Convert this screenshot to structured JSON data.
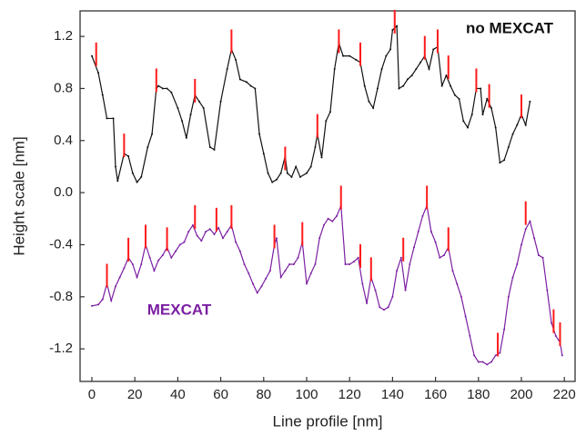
{
  "chart_data": {
    "type": "line",
    "xlabel": "Line profile [nm]",
    "ylabel": "Height scale [nm]",
    "xlim": [
      -5.5,
      225
    ],
    "ylim": [
      -1.45,
      1.396
    ],
    "xticks": [
      0,
      20,
      40,
      60,
      80,
      100,
      120,
      140,
      160,
      180,
      200,
      220
    ],
    "yticks": [
      -1.2,
      -0.8,
      -0.4,
      {
        "value": 0,
        "label": "0.0"
      },
      0.4,
      0.8,
      1.2
    ],
    "grid": false,
    "series": [
      {
        "name": "no MEXCAT",
        "color": "#111111",
        "x": [
          0,
          3,
          5,
          7,
          10,
          11,
          12,
          15,
          17,
          19,
          21,
          23,
          26,
          28,
          30,
          31,
          33,
          35,
          37,
          40,
          42,
          44,
          46,
          48,
          50,
          52,
          55,
          57,
          60,
          63,
          65,
          67,
          69,
          72,
          74,
          76,
          78,
          80,
          82,
          84,
          86,
          88,
          90,
          91,
          93,
          95,
          97,
          100,
          102,
          104,
          105,
          107,
          109,
          111,
          113,
          115,
          117,
          120,
          123,
          125,
          127,
          129,
          131,
          133,
          135,
          137,
          139,
          140,
          142,
          143,
          145,
          147,
          149,
          151,
          153,
          155,
          157,
          159,
          161,
          163,
          165,
          167,
          169,
          171,
          173,
          175,
          177,
          179,
          181,
          182,
          184,
          186,
          188,
          190,
          192,
          194,
          196,
          198,
          200,
          202,
          204
        ],
        "values": [
          1.05,
          0.92,
          0.75,
          0.57,
          0.57,
          0.2,
          0.09,
          0.3,
          0.28,
          0.15,
          0.08,
          0.12,
          0.35,
          0.45,
          0.8,
          0.82,
          0.8,
          0.8,
          0.77,
          0.65,
          0.55,
          0.42,
          0.6,
          0.75,
          0.7,
          0.65,
          0.35,
          0.33,
          0.7,
          0.95,
          1.1,
          1.02,
          0.87,
          0.85,
          0.82,
          0.8,
          0.45,
          0.3,
          0.15,
          0.08,
          0.1,
          0.15,
          0.28,
          0.15,
          0.12,
          0.2,
          0.12,
          0.15,
          0.2,
          0.35,
          0.45,
          0.27,
          0.55,
          0.62,
          0.95,
          1.15,
          1.05,
          1.05,
          1.02,
          1.0,
          0.82,
          0.7,
          0.65,
          0.8,
          0.95,
          1.05,
          1.1,
          1.25,
          1.28,
          0.8,
          0.82,
          0.87,
          0.9,
          0.95,
          1.0,
          1.05,
          0.95,
          1.1,
          1.12,
          0.82,
          0.9,
          0.82,
          0.75,
          0.72,
          0.55,
          0.5,
          0.6,
          0.8,
          0.8,
          0.6,
          0.72,
          0.65,
          0.5,
          0.23,
          0.25,
          0.35,
          0.45,
          0.52,
          0.6,
          0.52,
          0.7
        ],
        "markers": {
          "color": "#ff1a1a",
          "x": [
            2,
            15,
            30,
            48,
            65,
            90,
            105,
            115,
            125,
            141,
            155,
            161,
            166,
            179,
            185,
            200
          ],
          "values": [
            1.0,
            0.3,
            0.8,
            0.72,
            1.1,
            0.2,
            0.45,
            1.1,
            1.0,
            1.25,
            1.05,
            1.1,
            0.9,
            0.8,
            0.68,
            0.6
          ]
        }
      },
      {
        "name": "MEXCAT",
        "color": "#7b1fa2",
        "x": [
          0,
          3,
          5,
          7,
          9,
          11,
          13,
          15,
          17,
          19,
          21,
          23,
          25,
          27,
          29,
          31,
          33,
          35,
          37,
          39,
          41,
          43,
          45,
          47,
          49,
          51,
          53,
          55,
          57,
          59,
          61,
          63,
          65,
          67,
          69,
          71,
          73,
          75,
          77,
          79,
          81,
          83,
          85,
          86,
          88,
          90,
          92,
          94,
          96,
          98,
          100,
          102,
          104,
          106,
          108,
          110,
          112,
          114,
          116,
          118,
          120,
          122,
          124,
          126,
          128,
          130,
          132,
          134,
          136,
          138,
          140,
          142,
          144,
          146,
          148,
          150,
          152,
          154,
          156,
          158,
          160,
          162,
          164,
          166,
          168,
          170,
          172,
          174,
          176,
          178,
          180,
          182,
          184,
          186,
          188,
          190,
          192,
          194,
          196,
          198,
          200,
          202,
          204,
          206,
          208,
          210,
          212,
          214,
          216,
          218,
          219
        ],
        "values": [
          -0.87,
          -0.86,
          -0.82,
          -0.7,
          -0.83,
          -0.72,
          -0.65,
          -0.58,
          -0.5,
          -0.55,
          -0.65,
          -0.55,
          -0.4,
          -0.5,
          -0.6,
          -0.52,
          -0.48,
          -0.42,
          -0.5,
          -0.45,
          -0.4,
          -0.38,
          -0.3,
          -0.25,
          -0.33,
          -0.37,
          -0.3,
          -0.28,
          -0.32,
          -0.27,
          -0.35,
          -0.3,
          -0.25,
          -0.38,
          -0.45,
          -0.55,
          -0.62,
          -0.7,
          -0.77,
          -0.72,
          -0.66,
          -0.6,
          -0.4,
          -0.35,
          -0.65,
          -0.6,
          -0.55,
          -0.55,
          -0.5,
          -0.38,
          -0.7,
          -0.62,
          -0.55,
          -0.35,
          -0.25,
          -0.2,
          -0.22,
          -0.18,
          -0.1,
          -0.55,
          -0.55,
          -0.53,
          -0.5,
          -0.7,
          -0.85,
          -0.65,
          -0.75,
          -0.88,
          -0.9,
          -0.88,
          -0.8,
          -0.6,
          -0.5,
          -0.75,
          -0.55,
          -0.42,
          -0.3,
          -0.18,
          -0.1,
          -0.3,
          -0.38,
          -0.5,
          -0.48,
          -0.42,
          -0.6,
          -0.7,
          -0.8,
          -0.95,
          -1.1,
          -1.25,
          -1.3,
          -1.3,
          -1.32,
          -1.3,
          -1.25,
          -1.23,
          -1.05,
          -0.8,
          -0.65,
          -0.55,
          -0.4,
          -0.28,
          -0.22,
          -0.35,
          -0.48,
          -0.5,
          -0.75,
          -1.0,
          -1.1,
          -1.15,
          -1.25
        ],
        "markers": {
          "color": "#ff1a1a",
          "x": [
            7,
            17,
            25,
            35,
            48,
            58,
            65,
            85,
            98,
            116,
            125,
            130,
            145,
            156,
            166,
            189,
            202,
            215,
            218
          ],
          "values": [
            -0.7,
            -0.5,
            -0.4,
            -0.42,
            -0.25,
            -0.27,
            -0.25,
            -0.4,
            -0.38,
            -0.1,
            -0.55,
            -0.65,
            -0.5,
            -0.1,
            -0.42,
            -1.23,
            -0.22,
            -1.05,
            -1.15
          ]
        }
      }
    ]
  }
}
